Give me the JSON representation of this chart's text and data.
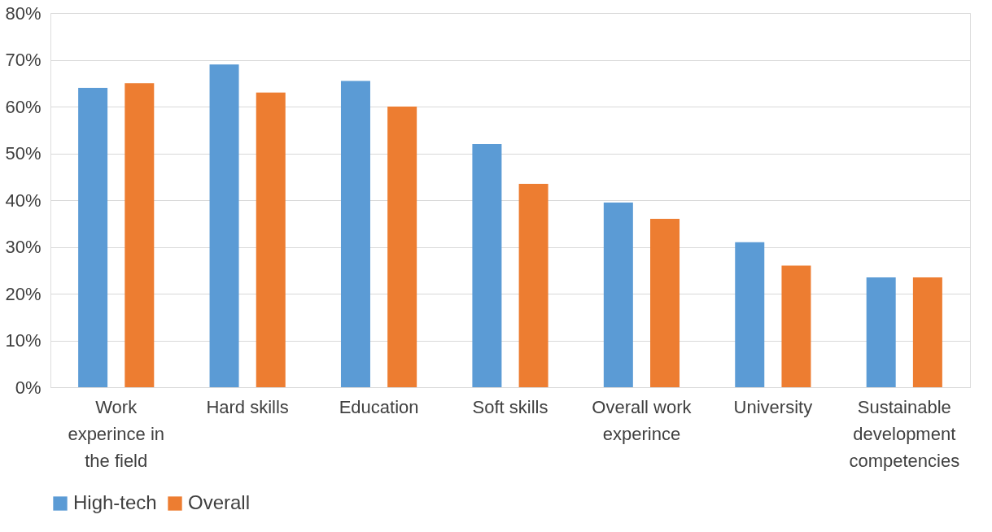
{
  "chart_data": {
    "type": "bar",
    "categories": [
      "Work experince in the field",
      "Hard skills",
      "Education",
      "Soft skills",
      "Overall work experince",
      "University",
      "Sustainable development competencies"
    ],
    "series": [
      {
        "name": "High-tech",
        "color": "#5b9bd5",
        "values": [
          64,
          69,
          65.5,
          52,
          39.5,
          31,
          23.5
        ]
      },
      {
        "name": "Overall",
        "color": "#ed7d31",
        "values": [
          65,
          63,
          60,
          43.5,
          36,
          26,
          23.5
        ]
      }
    ],
    "ylim": [
      0,
      80
    ],
    "yticks": [
      {
        "value": 0,
        "label": "0%"
      },
      {
        "value": 10,
        "label": "10%"
      },
      {
        "value": 20,
        "label": "20%"
      },
      {
        "value": 30,
        "label": "30%"
      },
      {
        "value": 40,
        "label": "40%"
      },
      {
        "value": 50,
        "label": "50%"
      },
      {
        "value": 60,
        "label": "60%"
      },
      {
        "value": 70,
        "label": "70%"
      },
      {
        "value": 80,
        "label": "80%"
      }
    ],
    "grid": "y",
    "legend": "bottom"
  }
}
